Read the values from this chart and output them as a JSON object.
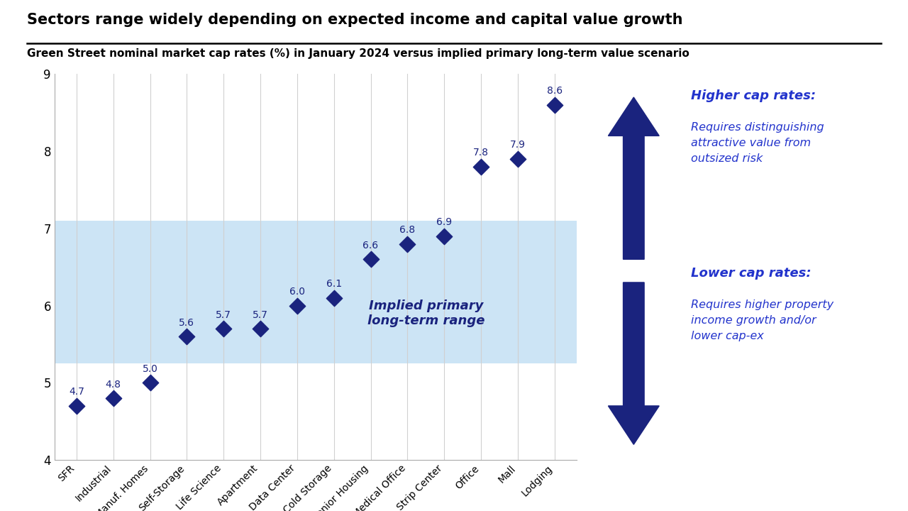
{
  "title": "Sectors range widely depending on expected income and capital value growth",
  "subtitle": "Green Street nominal market cap rates (%) in January 2024 versus implied primary long-term value scenario",
  "categories": [
    "SFR",
    "Industrial",
    "Manuf. Homes",
    "Self-Storage",
    "Life Science",
    "Apartment",
    "Data Center",
    "Cold Storage",
    "Senior Housing",
    "Medical Office",
    "Strip Center",
    "Office",
    "Mall",
    "Lodging"
  ],
  "values": [
    4.7,
    4.8,
    5.0,
    5.6,
    5.7,
    5.7,
    6.0,
    6.1,
    6.6,
    6.8,
    6.9,
    7.8,
    7.9,
    8.6
  ],
  "band_low": 5.25,
  "band_high": 7.1,
  "band_label_line1": "Implied primary",
  "band_label_line2": "long-term range",
  "marker_color": "#1a237e",
  "band_color": "#cce4f5",
  "ylim_low": 4.0,
  "ylim_high": 9.0,
  "yticks": [
    4,
    5,
    6,
    7,
    8,
    9
  ],
  "higher_cap_bold": "Higher cap rates:",
  "higher_cap_text": "Requires distinguishing\nattractive value from\noutsized risk",
  "lower_cap_bold": "Lower cap rates:",
  "lower_cap_text": "Requires higher property\nincome growth and/or\nlower cap-ex",
  "dark_navy": "#1a237e",
  "text_blue": "#2233cc",
  "background": "#ffffff"
}
